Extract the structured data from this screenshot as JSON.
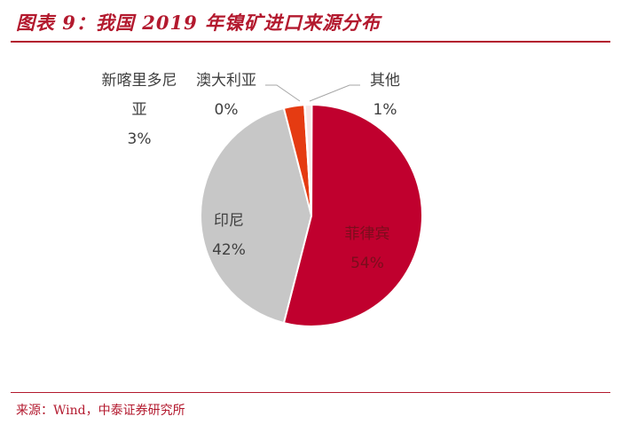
{
  "header": {
    "title": "图表 9：我国 2019 年镍矿进口来源分布"
  },
  "footer": {
    "source": "来源：Wind，中泰证券研究所"
  },
  "chart_data": {
    "type": "pie",
    "title": "图表 9：我国 2019 年镍矿进口来源分布",
    "unit": "%",
    "slices": [
      {
        "name": "菲律宾",
        "value": 54,
        "value_label": "54%",
        "color": "#c0002e"
      },
      {
        "name": "印尼",
        "value": 42,
        "value_label": "42%",
        "color": "#c7c7c7"
      },
      {
        "name": "新喀里多尼亚",
        "name_lines": [
          "新喀里多尼",
          "亚"
        ],
        "value": 3,
        "value_label": "3%",
        "color": "#e53b12"
      },
      {
        "name": "澳大利亚",
        "value": 0,
        "value_label": "0%",
        "color": "#f2dcc8"
      },
      {
        "name": "其他",
        "value": 1,
        "value_label": "1%",
        "color": "#f7e6e6"
      }
    ]
  }
}
